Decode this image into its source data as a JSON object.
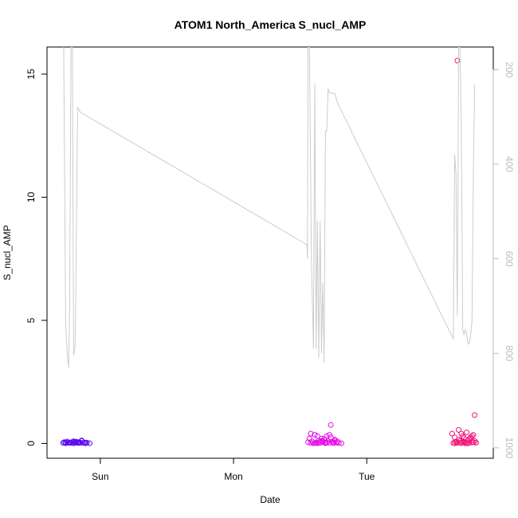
{
  "chart_data": {
    "type": "scatter",
    "title": "ATOM1 North_America S_nucl_AMP",
    "xlabel": "Date",
    "ylabel": "S_nucl_AMP",
    "x_ticks": [
      "Sun",
      "Mon",
      "Tue"
    ],
    "x_tick_values": [
      1.0,
      2.0,
      3.0
    ],
    "xlim": [
      0.6,
      3.95
    ],
    "ylim": [
      -0.6,
      16.1
    ],
    "y_ticks": [
      0,
      5,
      10,
      15
    ],
    "y2_ticks": [
      200,
      400,
      600,
      800,
      1000
    ],
    "y2_reversed": true,
    "y2_lim": [
      1022,
      152
    ],
    "grid": false,
    "series": [
      {
        "kind": "points",
        "color": "#5a0af0",
        "x": [
          0.72,
          0.73,
          0.74,
          0.75,
          0.76,
          0.77,
          0.78,
          0.79,
          0.8,
          0.81,
          0.82,
          0.83,
          0.84,
          0.85,
          0.86,
          0.87,
          0.88,
          0.89,
          0.9,
          0.74,
          0.77,
          0.8,
          0.83,
          0.86,
          0.89,
          0.92,
          0.78,
          0.81,
          0.84
        ],
        "y": [
          0.02,
          0.05,
          0.01,
          0.08,
          0.03,
          0.04,
          0.02,
          0.06,
          0.01,
          0.03,
          0.07,
          0.02,
          0.05,
          0.03,
          0.1,
          0.02,
          0.04,
          0.01,
          0.03,
          0.04,
          0.02,
          0.09,
          0.05,
          0.12,
          0.02,
          0.01,
          0.03,
          0.06,
          0.02
        ]
      },
      {
        "kind": "points",
        "color": "#e60ae6",
        "x": [
          2.56,
          2.57,
          2.58,
          2.59,
          2.6,
          2.61,
          2.62,
          2.63,
          2.64,
          2.65,
          2.66,
          2.67,
          2.68,
          2.69,
          2.7,
          2.71,
          2.72,
          2.73,
          2.74,
          2.75,
          2.76,
          2.77,
          2.78,
          2.58,
          2.61,
          2.64,
          2.67,
          2.7,
          2.73,
          2.76,
          2.63,
          2.66,
          2.69,
          2.72,
          2.75,
          2.79,
          2.81
        ],
        "y": [
          0.05,
          0.2,
          0.02,
          0.08,
          0.01,
          0.35,
          0.03,
          0.3,
          0.12,
          0.02,
          0.1,
          0.05,
          0.18,
          0.01,
          0.04,
          0.09,
          0.02,
          0.25,
          0.06,
          0.01,
          0.15,
          0.03,
          0.08,
          0.4,
          0.02,
          0.05,
          0.1,
          0.3,
          0.75,
          0.12,
          0.01,
          0.2,
          0.04,
          0.35,
          0.06,
          0.02,
          0.01
        ]
      },
      {
        "kind": "points",
        "color": "#f0147a",
        "x": [
          3.64,
          3.65,
          3.66,
          3.67,
          3.68,
          3.69,
          3.7,
          3.71,
          3.72,
          3.73,
          3.74,
          3.75,
          3.76,
          3.77,
          3.78,
          3.79,
          3.8,
          3.81,
          3.82,
          3.66,
          3.69,
          3.72,
          3.75,
          3.78,
          3.81,
          3.68,
          3.71,
          3.74,
          3.77,
          3.8,
          3.67,
          3.7,
          3.73,
          3.76,
          3.79,
          3.82
        ],
        "y": [
          0.4,
          0.02,
          0.25,
          0.05,
          15.55,
          0.55,
          0.1,
          0.01,
          0.3,
          0.08,
          0.03,
          0.45,
          0.12,
          0.02,
          0.2,
          0.05,
          0.35,
          1.15,
          0.03,
          0.01,
          0.15,
          0.06,
          0.02,
          0.25,
          0.1,
          0.02,
          0.4,
          0.01,
          0.18,
          0.05,
          0.08,
          0.03,
          0.22,
          0.01,
          0.3,
          0.04
        ]
      },
      {
        "kind": "line",
        "axis": "y2",
        "color": "#cccccc",
        "x": [
          0.725,
          0.74,
          0.752,
          0.762,
          0.77,
          0.78,
          0.79,
          0.8,
          0.81,
          0.815,
          0.83,
          0.85,
          2.55,
          2.555,
          2.56,
          2.57,
          2.585,
          2.6,
          2.61,
          2.62,
          2.63,
          2.64,
          2.65,
          2.66,
          2.67,
          2.68,
          2.69,
          2.7,
          2.71,
          2.72,
          2.73,
          2.74,
          2.75,
          2.76,
          2.78,
          3.65,
          3.66,
          3.67,
          3.68,
          3.69,
          3.7,
          3.71,
          3.72,
          3.73,
          3.74,
          3.75,
          3.76,
          3.77,
          3.78,
          3.79,
          3.8,
          3.81
        ],
        "y": [
          152,
          740,
          800,
          830,
          700,
          152,
          152,
          805,
          790,
          710,
          280,
          290,
          570,
          600,
          152,
          152,
          600,
          790,
          230,
          790,
          520,
          810,
          520,
          800,
          650,
          820,
          330,
          330,
          240,
          248,
          250,
          250,
          250,
          250,
          270,
          770,
          380,
          420,
          720,
          152,
          152,
          330,
          750,
          760,
          750,
          760,
          780,
          780,
          760,
          730,
          430,
          232
        ]
      }
    ]
  }
}
